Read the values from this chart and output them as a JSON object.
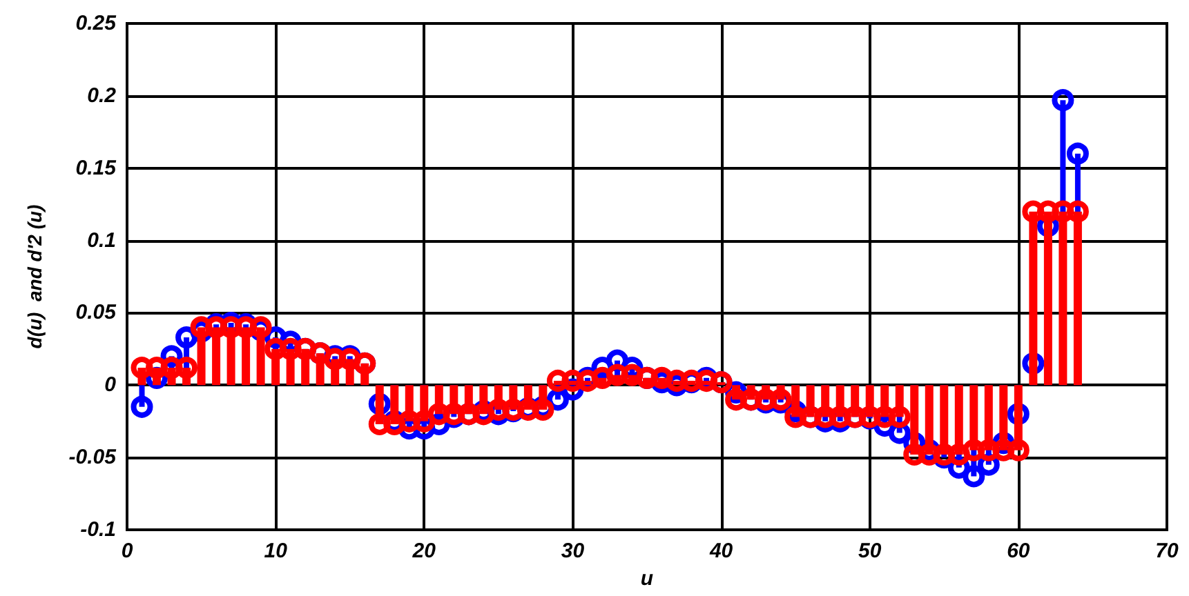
{
  "chart_data": {
    "type": "lollipop",
    "xlabel": "u",
    "ylabel": "d(u)  and d'2 (u)",
    "x": [
      1,
      2,
      3,
      4,
      5,
      6,
      7,
      8,
      9,
      10,
      11,
      12,
      13,
      14,
      15,
      16,
      17,
      18,
      19,
      20,
      21,
      22,
      23,
      24,
      25,
      26,
      27,
      28,
      29,
      30,
      31,
      32,
      33,
      34,
      35,
      36,
      37,
      38,
      39,
      40,
      41,
      42,
      43,
      44,
      45,
      46,
      47,
      48,
      49,
      50,
      51,
      52,
      53,
      54,
      55,
      56,
      57,
      58,
      59,
      60,
      61,
      62,
      63,
      64
    ],
    "series": [
      {
        "color": "#0000ff",
        "values": [
          -0.015,
          0.005,
          0.02,
          0.033,
          0.037,
          0.042,
          0.043,
          0.042,
          0.038,
          0.033,
          0.03,
          0.025,
          0.022,
          0.02,
          0.02,
          0.015,
          -0.013,
          -0.025,
          -0.03,
          -0.03,
          -0.027,
          -0.022,
          -0.02,
          -0.018,
          -0.02,
          -0.018,
          -0.016,
          -0.015,
          -0.01,
          -0.003,
          0.005,
          0.012,
          0.017,
          0.012,
          0.005,
          0.002,
          0,
          0.002,
          0.005,
          0.002,
          -0.005,
          -0.01,
          -0.012,
          -0.012,
          -0.018,
          -0.022,
          -0.025,
          -0.025,
          -0.022,
          -0.023,
          -0.028,
          -0.033,
          -0.04,
          -0.045,
          -0.05,
          -0.057,
          -0.063,
          -0.055,
          -0.04,
          -0.02,
          0.015,
          0.11,
          0.197,
          0.16
        ]
      },
      {
        "color": "#ff0000",
        "values": [
          0.012,
          0.012,
          0.012,
          0.012,
          0.04,
          0.04,
          0.04,
          0.04,
          0.04,
          0.025,
          0.025,
          0.025,
          0.022,
          0.018,
          0.018,
          0.015,
          -0.027,
          -0.027,
          -0.025,
          -0.025,
          -0.02,
          -0.02,
          -0.02,
          -0.02,
          -0.017,
          -0.017,
          -0.017,
          -0.017,
          0.003,
          0.003,
          0.003,
          0.005,
          0.007,
          0.007,
          0.005,
          0.005,
          0.003,
          0.003,
          0.003,
          0.002,
          -0.01,
          -0.01,
          -0.01,
          -0.01,
          -0.022,
          -0.022,
          -0.022,
          -0.022,
          -0.022,
          -0.022,
          -0.022,
          -0.022,
          -0.048,
          -0.048,
          -0.048,
          -0.048,
          -0.045,
          -0.045,
          -0.045,
          -0.045,
          0.12,
          0.12,
          0.12,
          0.12
        ]
      }
    ],
    "xlim": [
      0,
      70
    ],
    "xticks": [
      0,
      10,
      20,
      30,
      40,
      50,
      60,
      70
    ],
    "ylim": [
      -0.1,
      0.25
    ],
    "yticks": [
      -0.1,
      -0.05,
      0,
      0.05,
      0.1,
      0.15,
      0.2,
      0.25
    ],
    "grid": true,
    "marker": "circle"
  }
}
